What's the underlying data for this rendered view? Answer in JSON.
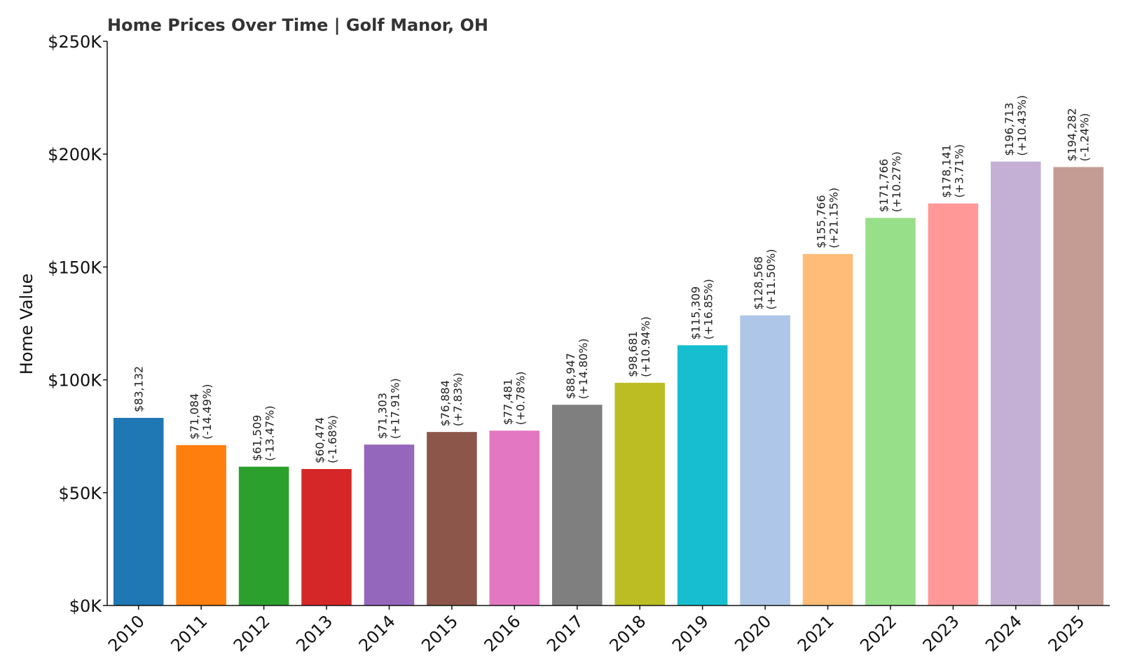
{
  "chart_data": {
    "type": "bar",
    "title": "Home Prices Over Time | Golf Manor, OH",
    "xlabel": "",
    "ylabel": "Home Value",
    "ylim": [
      0,
      250000
    ],
    "yticks": [
      0,
      50000,
      100000,
      150000,
      200000,
      250000
    ],
    "ytick_labels": [
      "$0K",
      "$50K",
      "$100K",
      "$150K",
      "$200K",
      "$250K"
    ],
    "grid": false,
    "categories": [
      "2010",
      "2011",
      "2012",
      "2013",
      "2014",
      "2015",
      "2016",
      "2017",
      "2018",
      "2019",
      "2020",
      "2021",
      "2022",
      "2023",
      "2024",
      "2025"
    ],
    "values": [
      83132,
      71084,
      61509,
      60474,
      71303,
      76884,
      77481,
      88947,
      98681,
      115309,
      128568,
      155766,
      171766,
      178141,
      196713,
      194282
    ],
    "value_labels": [
      "$83,132",
      "$71,084",
      "$61,509",
      "$60,474",
      "$71,303",
      "$76,884",
      "$77,481",
      "$88,947",
      "$98,681",
      "$115,309",
      "$128,568",
      "$155,766",
      "$171,766",
      "$178,141",
      "$196,713",
      "$194,282"
    ],
    "change_labels": [
      "",
      "(-14.49%)",
      "(-13.47%)",
      "(-1.68%)",
      "(+17.91%)",
      "(+7.83%)",
      "(+0.78%)",
      "(+14.80%)",
      "(+10.94%)",
      "(+16.85%)",
      "(+11.50%)",
      "(+21.15%)",
      "(+10.27%)",
      "(+3.71%)",
      "(+10.43%)",
      "(-1.24%)"
    ],
    "colors": [
      "#1f77b4",
      "#ff7f0e",
      "#2ca02c",
      "#d62728",
      "#9467bd",
      "#8c564b",
      "#e377c2",
      "#7f7f7f",
      "#bcbd22",
      "#17becf",
      "#aec7e8",
      "#ffbb78",
      "#98df8a",
      "#ff9896",
      "#c5b0d5",
      "#c49c94"
    ]
  }
}
